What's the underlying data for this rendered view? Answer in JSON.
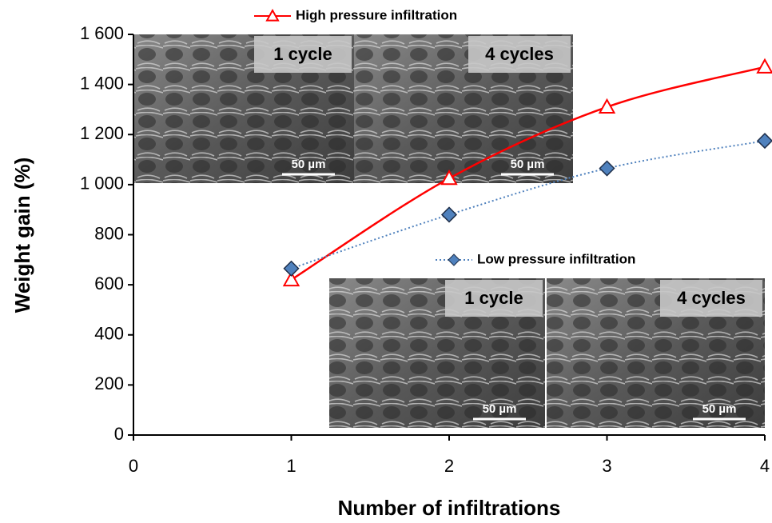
{
  "chart_data": {
    "type": "line",
    "x_label": "Number of infiltrations",
    "y_label": "Weight gain (%)",
    "x": [
      1,
      2,
      3,
      4
    ],
    "series": [
      {
        "name": "High pressure infiltration",
        "color": "#ff0000",
        "values": [
          620,
          1025,
          1310,
          1470
        ]
      },
      {
        "name": "Low pressure infiltration",
        "color": "#4f81bd",
        "values": [
          665,
          880,
          1065,
          1175
        ]
      }
    ],
    "xlim": [
      0,
      4
    ],
    "xticks": [
      0,
      1,
      2,
      3,
      4
    ],
    "ylim": [
      0,
      1600
    ],
    "yticks": [
      0,
      200,
      400,
      600,
      800,
      {
        "value": 1000,
        "label": "1 000"
      },
      {
        "value": 1200,
        "label": "1 200"
      },
      {
        "value": 1400,
        "label": "1 400"
      },
      {
        "value": 1600,
        "label": "1 600"
      }
    ],
    "insets": [
      {
        "panels": [
          {
            "label": "1 cycle",
            "scale": "50 µm"
          },
          {
            "label": "4 cycles",
            "scale": "50 µm"
          }
        ]
      },
      {
        "panels": [
          {
            "label": "1 cycle",
            "scale": "50 µm"
          },
          {
            "label": "4 cycles",
            "scale": "50 µm"
          }
        ]
      }
    ]
  }
}
